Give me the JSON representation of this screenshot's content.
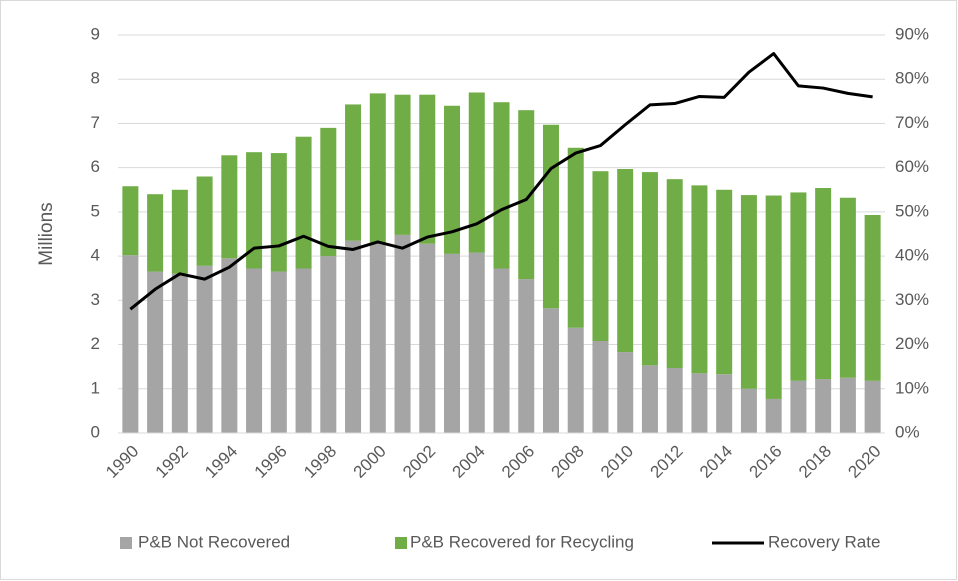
{
  "chart_data": {
    "type": "bar",
    "stacked": true,
    "y_label": "Millions",
    "categories": [
      "1990",
      null,
      "1992",
      null,
      "1994",
      null,
      "1996",
      null,
      "1998",
      null,
      "2000",
      null,
      "2002",
      null,
      "2004",
      null,
      "2006",
      null,
      "2008",
      null,
      "2010",
      null,
      "2012",
      null,
      "2014",
      null,
      "2016",
      null,
      "2018",
      null,
      "2020"
    ],
    "series": [
      {
        "name": "P&B Not Recovered",
        "color": "#a5a5a5",
        "type": "bar",
        "values": [
          4.02,
          3.65,
          3.6,
          3.78,
          3.95,
          3.72,
          3.65,
          3.72,
          4.0,
          4.35,
          4.3,
          4.48,
          4.28,
          4.05,
          4.08,
          3.72,
          3.48,
          2.82,
          2.38,
          2.08,
          1.83,
          1.53,
          1.47,
          1.35,
          1.33,
          1.0,
          0.77,
          1.18,
          1.22,
          1.25,
          1.18
        ]
      },
      {
        "name": "P&B Recovered for Recycling",
        "color": "#70ad47",
        "type": "bar",
        "values": [
          1.56,
          1.75,
          1.9,
          2.02,
          2.33,
          2.63,
          2.68,
          2.98,
          2.9,
          3.08,
          3.38,
          3.17,
          3.37,
          3.35,
          3.62,
          3.76,
          3.82,
          4.15,
          4.07,
          3.84,
          4.14,
          4.37,
          4.27,
          4.25,
          4.17,
          4.38,
          4.6,
          4.26,
          4.32,
          4.07,
          3.75
        ]
      },
      {
        "name": "Recovery Rate",
        "color": "#000000",
        "type": "line",
        "axis": "y2",
        "values": [
          28,
          32.5,
          36,
          34.8,
          37.5,
          41.8,
          42.3,
          44.5,
          42.2,
          41.5,
          43.2,
          41.8,
          44.3,
          45.5,
          47.3,
          50.5,
          52.8,
          59.8,
          63.3,
          65,
          69.7,
          74.2,
          74.5,
          76.1,
          75.9,
          81.6,
          85.8,
          78.5,
          78,
          76.8,
          76
        ]
      }
    ],
    "ylim": [
      0,
      9
    ],
    "yticks": [
      0,
      1,
      2,
      3,
      4,
      5,
      6,
      7,
      8,
      9
    ],
    "y2lim": [
      0,
      90
    ],
    "y2ticks": [
      {
        "value": 0,
        "label": "0%"
      },
      {
        "value": 10,
        "label": "10%"
      },
      {
        "value": 20,
        "label": "20%"
      },
      {
        "value": 30,
        "label": "30%"
      },
      {
        "value": 40,
        "label": "40%"
      },
      {
        "value": 50,
        "label": "50%"
      },
      {
        "value": 60,
        "label": "60%"
      },
      {
        "value": 70,
        "label": "70%"
      },
      {
        "value": 80,
        "label": "80%"
      },
      {
        "value": 90,
        "label": "90%"
      }
    ],
    "grid": true,
    "legend": "bottom"
  }
}
